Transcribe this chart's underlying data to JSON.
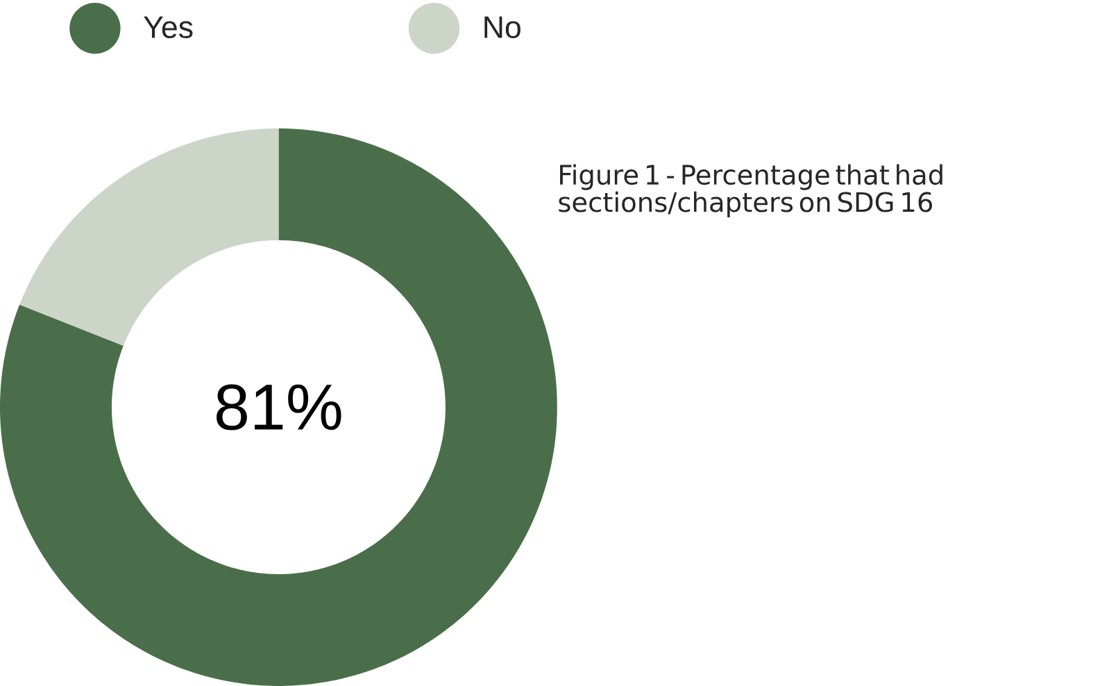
{
  "chart_data": {
    "type": "donut",
    "title": "Figure 1 - Percentage that had sections/chapters on SDG 16",
    "categories": [
      "Yes",
      "No"
    ],
    "values": [
      81,
      19
    ],
    "colors": [
      "#4a6e4a",
      "#cdd5c9"
    ],
    "legend": "top",
    "annotations": [
      "81%"
    ]
  }
}
